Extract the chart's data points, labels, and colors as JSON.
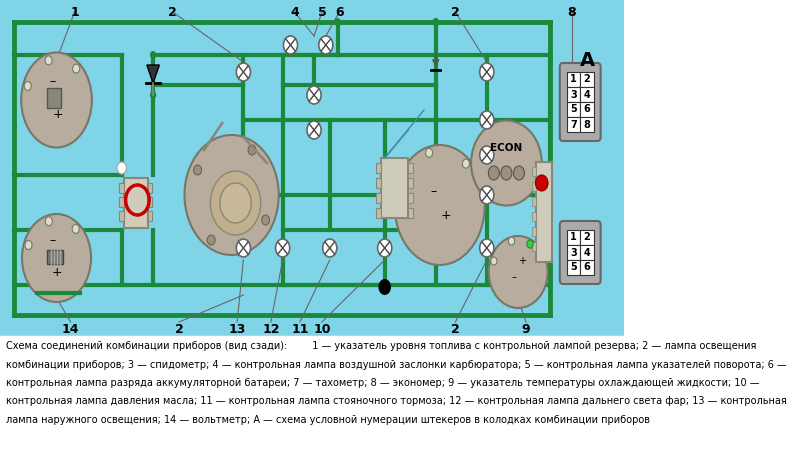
{
  "bg_color": "#7fd4e8",
  "green_color": "#1a8a3a",
  "gray_color": "#b8ac9e",
  "dark_gray": "#888880",
  "white": "#ffffff",
  "black": "#000000",
  "red": "#cc0000",
  "title": "A",
  "caption_line1": "Схема соединений комбинации приборов (вид сзади):        1 — указатель уровня топлива с контрольной лампой резерва; 2 — лампа освещения",
  "caption_line2": "комбинации приборов; 3 — спидометр; 4 — контрольная лампа воздушной заслонки карбюратора; 5 — контрольная лампа указателей поворота; 6 —",
  "caption_line3": "контрольная лампа разряда аккумуляторной батареи; 7 — тахометр; 8 — экономер; 9 — указатель температуры охлаждающей жидкости; 10 —",
  "caption_line4": "контрольная лампа давления масла; 11 — контрольная лампа стояночного тормоза; 12 — контрольная лампа дальнего света фар; 13 — контрольная",
  "caption_line5": "лампа наружного освещения; 14 — вольтметр; А — схема условной нумерации штекеров в колодках комбинации приборов"
}
